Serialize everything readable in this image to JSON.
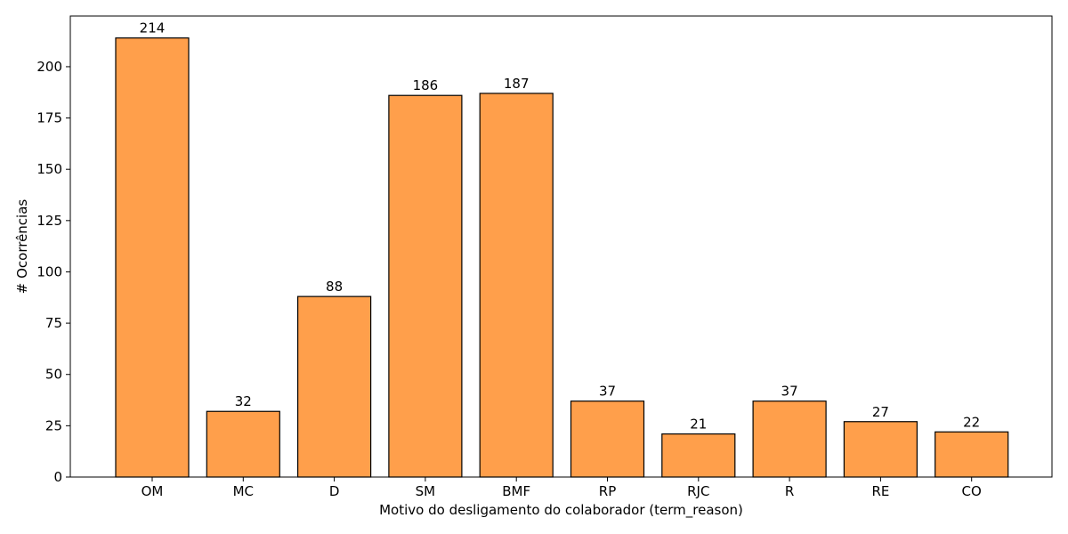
{
  "chart_data": {
    "type": "bar",
    "title": "",
    "xlabel": "Motivo do desligamento do colaborador (term_reason)",
    "ylabel": "# Ocorrências",
    "categories": [
      "OM",
      "MC",
      "D",
      "SM",
      "BMF",
      "RP",
      "RJC",
      "R",
      "RE",
      "CO"
    ],
    "values": [
      214,
      32,
      88,
      186,
      187,
      37,
      21,
      37,
      27,
      22
    ],
    "ylim": [
      0,
      224.7
    ],
    "yticks": [
      0,
      25,
      50,
      75,
      100,
      125,
      150,
      175,
      200
    ],
    "grid": false,
    "legend": "none",
    "colors": {
      "bar": "#ff9f4b",
      "edge": "#000000"
    }
  }
}
